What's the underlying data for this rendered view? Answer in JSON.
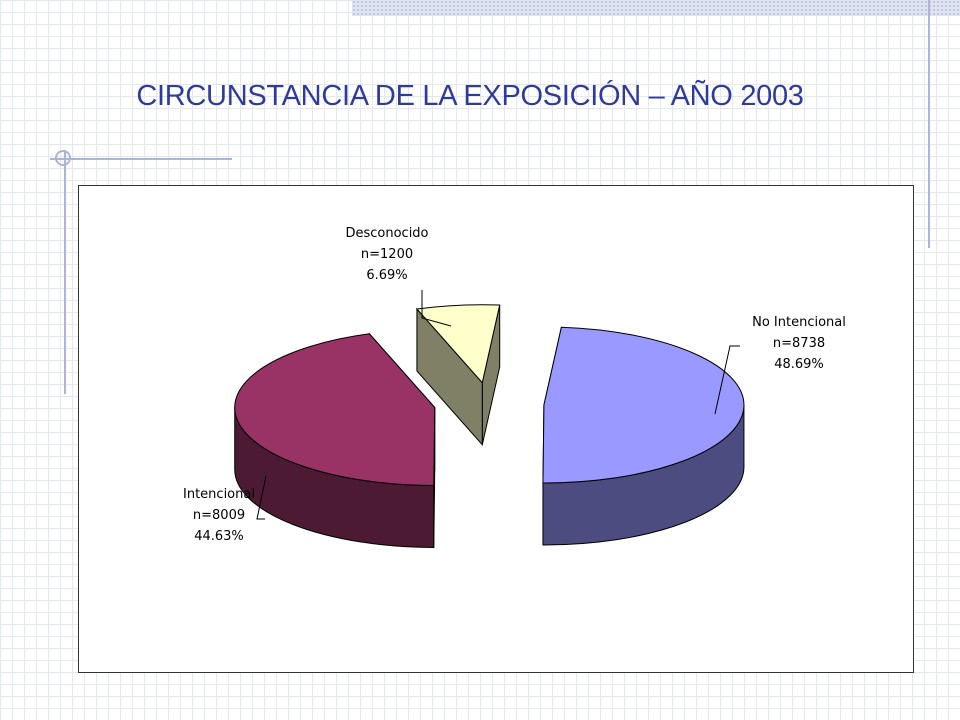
{
  "title": "CIRCUNSTANCIA DE LA EXPOSICIÓN – AÑO 2003",
  "chart_data": {
    "type": "pie",
    "title": "CIRCUNSTANCIA DE LA EXPOSICIÓN – AÑO 2003",
    "three_d": true,
    "exploded": true,
    "slices": [
      {
        "label": "No Intencional",
        "n_label": "n=8738",
        "pct_label": "48.69%",
        "value": 8738,
        "percent": 48.69,
        "color": "#9999ff",
        "side_color": "#4c4c80"
      },
      {
        "label": "Intencional",
        "n_label": "n=8009",
        "pct_label": "44.63%",
        "value": 8009,
        "percent": 44.63,
        "color": "#993366",
        "side_color": "#4d1a33"
      },
      {
        "label": "Desconocido",
        "n_label": "n=1200",
        "pct_label": "6.69%",
        "value": 1200,
        "percent": 6.69,
        "color": "#ffffcc",
        "side_color": "#808066"
      }
    ]
  }
}
